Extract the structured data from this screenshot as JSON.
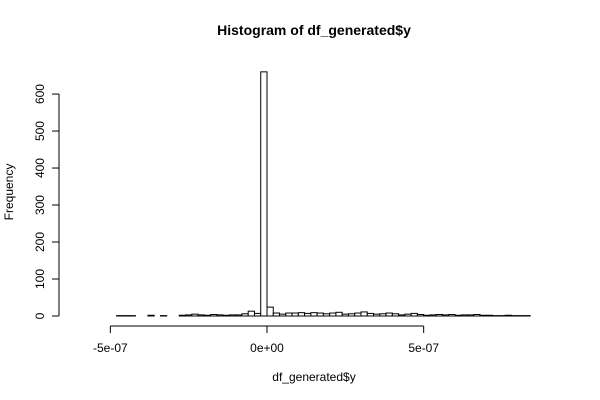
{
  "chart_data": {
    "type": "bar",
    "title": "Histogram of df_generated$y",
    "xlabel": "df_generated$y",
    "ylabel": "Frequency",
    "x_ticks": [
      {
        "value": -5e-07,
        "label": "-5e-07"
      },
      {
        "value": 0,
        "label": "0e+00"
      },
      {
        "value": 5e-07,
        "label": "5e-07"
      }
    ],
    "y_ticks": [
      0,
      100,
      200,
      300,
      400,
      500,
      600
    ],
    "xlim": [
      -6e-07,
      9e-07
    ],
    "ylim": [
      0,
      665
    ],
    "bin_width": 2e-08,
    "bin_start": -6e-07,
    "counts": [
      0,
      0,
      0,
      0,
      0,
      0,
      1,
      1,
      1,
      0,
      0,
      2,
      0,
      1,
      0,
      0,
      2,
      3,
      5,
      3,
      2,
      4,
      3,
      2,
      3,
      3,
      6,
      13,
      7,
      660,
      24,
      8,
      5,
      8,
      8,
      9,
      7,
      9,
      8,
      6,
      8,
      10,
      5,
      6,
      8,
      11,
      7,
      5,
      6,
      8,
      6,
      3,
      5,
      7,
      4,
      2,
      3,
      4,
      3,
      4,
      2,
      3,
      3,
      4,
      2,
      2,
      1,
      1,
      2,
      1,
      1,
      1,
      0,
      0,
      0
    ]
  }
}
